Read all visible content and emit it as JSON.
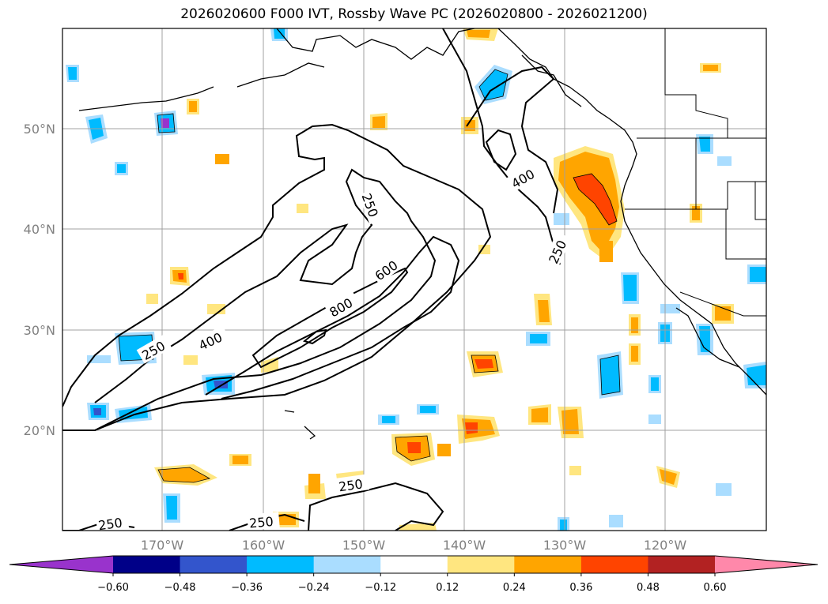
{
  "title": "2026020600 F000 IVT, Rossby Wave PC (2026020800 - 2026021200)",
  "latitude_labels": [
    "50°N",
    "40°N",
    "30°N",
    "20°N"
  ],
  "longitude_labels": [
    "170°W",
    "160°W",
    "150°W",
    "140°W",
    "130°W",
    "120°W"
  ],
  "contour_labels": [
    "250",
    "400",
    "600",
    "800",
    "400",
    "250",
    "250",
    "250",
    "250"
  ],
  "colorbar": {
    "tick_labels": [
      "−0.60",
      "−0.48",
      "−0.36",
      "−0.24",
      "−0.12",
      "0.12",
      "0.24",
      "0.36",
      "0.48",
      "0.60"
    ],
    "colors": [
      "#9933cc",
      "#000088",
      "#3355cc",
      "#00bbff",
      "#aaddff",
      "#ffffff",
      "#ffe680",
      "#ffa500",
      "#ff4400",
      "#b22222",
      "#ff88aa"
    ]
  },
  "colors": {
    "positive_weak": "#ffe680",
    "positive_mid": "#ffa500",
    "positive_strong": "#ff4400",
    "negative_weak": "#aaddff",
    "negative_mid": "#00bbff",
    "negative_strong": "#3355cc",
    "negative_max": "#9933cc"
  }
}
